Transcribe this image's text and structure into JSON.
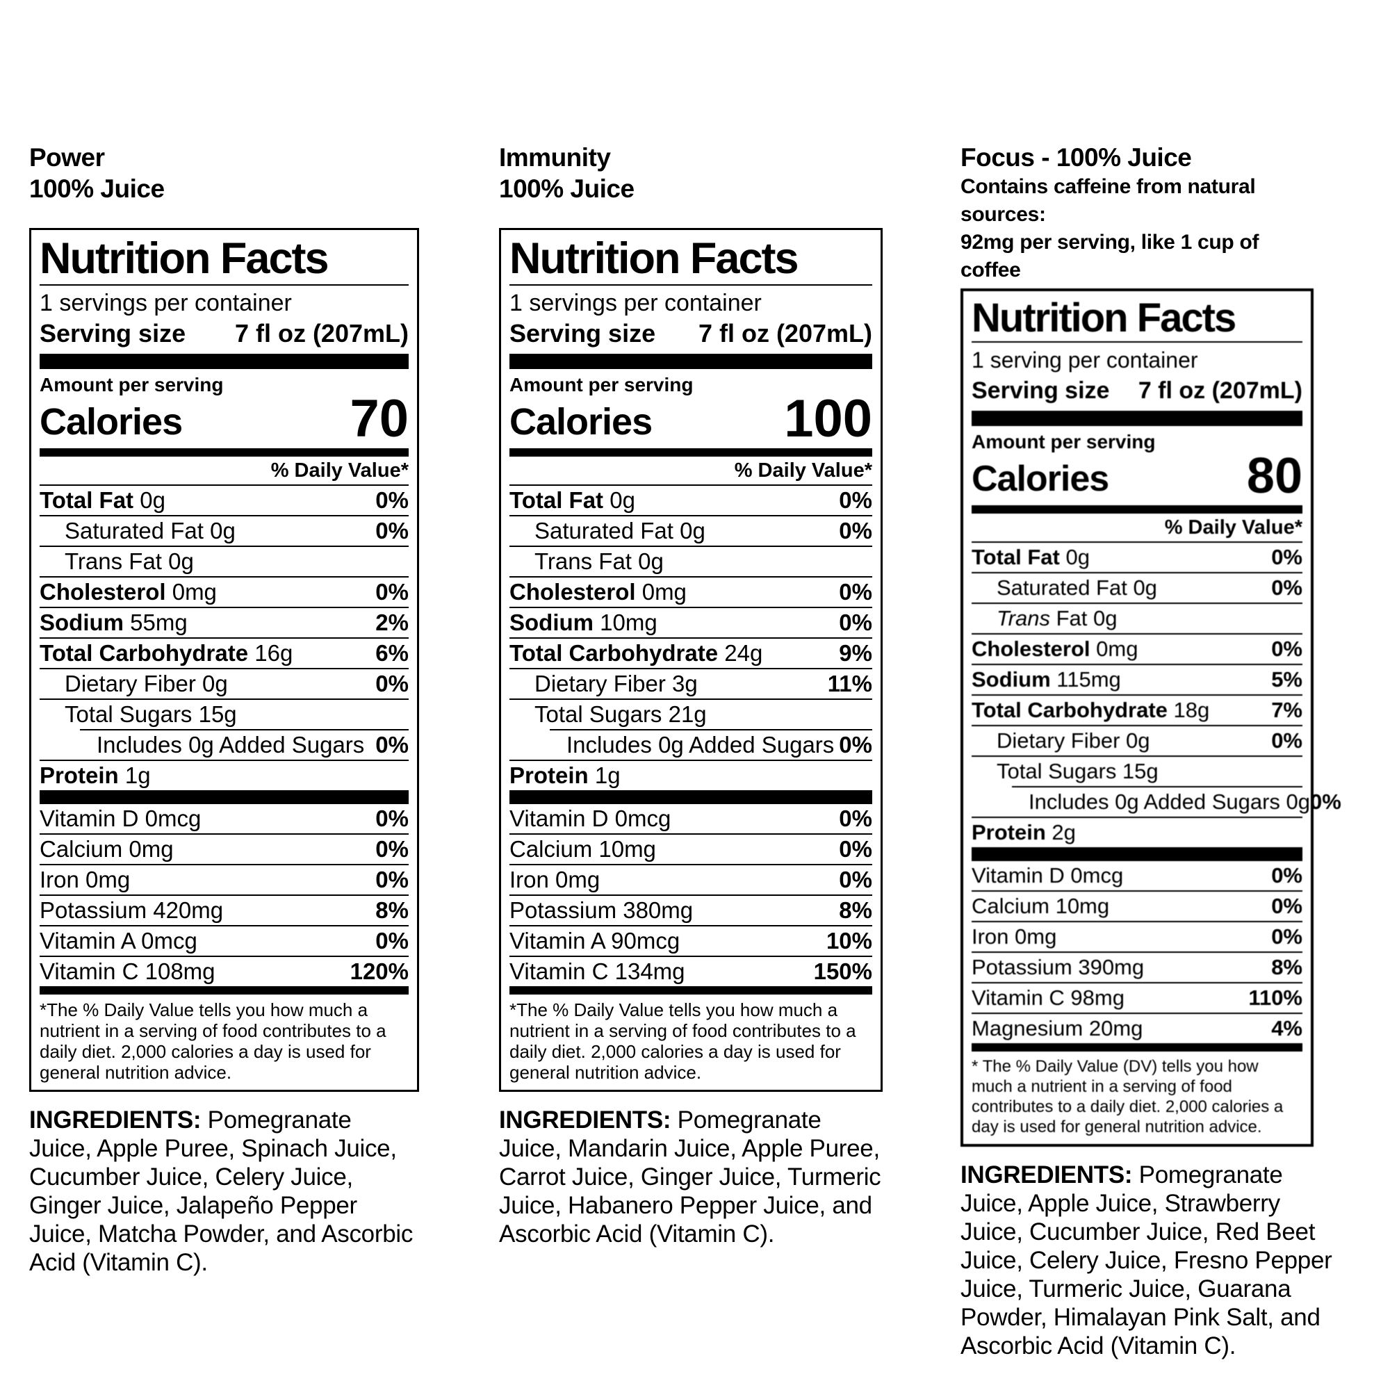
{
  "labels": [
    {
      "title_line1": "Power",
      "title_line2": "100% Juice",
      "header": "Nutrition Facts",
      "servings_per_container": "1 servings per container",
      "serving_size_label": "Serving size",
      "serving_size_value": "7 fl oz (207mL)",
      "amount_per_serving": "Amount per serving",
      "calories_label": "Calories",
      "calories_value": "70",
      "dv_header": "% Daily Value*",
      "rows": [
        {
          "b": "Total Fat",
          "r": " 0g",
          "pct": "0%",
          "ind": 0
        },
        {
          "r": "Saturated Fat 0g",
          "pct": "0%",
          "ind": 1
        },
        {
          "r": "Trans Fat 0g",
          "pct": "",
          "ind": 1
        },
        {
          "b": "Cholesterol",
          "r": " 0mg",
          "pct": "0%",
          "ind": 0
        },
        {
          "b": "Sodium",
          "r": " 55mg",
          "pct": "2%",
          "ind": 0
        },
        {
          "b": "Total Carbohydrate",
          "r": " 16g",
          "pct": "6%",
          "ind": 0
        },
        {
          "r": "Dietary Fiber 0g",
          "pct": "0%",
          "ind": 1
        },
        {
          "r": "Total Sugars 15g",
          "pct": "",
          "ind": 1
        },
        {
          "r": "Includes 0g Added Sugars",
          "pct": "0%",
          "ind": 2
        },
        {
          "b": "Protein",
          "r": " 1g",
          "pct": "",
          "ind": 0
        }
      ],
      "vitamins": [
        {
          "t": "Vitamin D 0mcg",
          "pct": "0%"
        },
        {
          "t": "Calcium 0mg",
          "pct": "0%"
        },
        {
          "t": "Iron 0mg",
          "pct": "0%"
        },
        {
          "t": "Potassium 420mg",
          "pct": "8%"
        },
        {
          "t": "Vitamin A 0mcg",
          "pct": "0%"
        },
        {
          "t": "Vitamin C 108mg",
          "pct": "120%"
        }
      ],
      "footnote": "*The % Daily Value tells you how much a nutrient in a serving of food contributes to a daily diet. 2,000 calories a day is used for general nutrition advice.",
      "ingredients_label": "INGREDIENTS:",
      "ingredients_text": " Pomegranate Juice, Apple Puree, Spinach Juice, Cucumber Juice, Celery Juice, Ginger Juice, Jalapeño Pepper Juice, Matcha Powder, and Ascorbic Acid (Vitamin C)."
    },
    {
      "title_line1": "Immunity",
      "title_line2": "100% Juice",
      "header": "Nutrition Facts",
      "servings_per_container": "1 servings per container",
      "serving_size_label": "Serving size",
      "serving_size_value": "7 fl oz (207mL)",
      "amount_per_serving": "Amount per serving",
      "calories_label": "Calories",
      "calories_value": "100",
      "dv_header": "% Daily Value*",
      "rows": [
        {
          "b": "Total Fat",
          "r": " 0g",
          "pct": "0%",
          "ind": 0
        },
        {
          "r": "Saturated Fat 0g",
          "pct": "0%",
          "ind": 1
        },
        {
          "r": "Trans Fat 0g",
          "pct": "",
          "ind": 1
        },
        {
          "b": "Cholesterol",
          "r": " 0mg",
          "pct": "0%",
          "ind": 0
        },
        {
          "b": "Sodium",
          "r": " 10mg",
          "pct": "0%",
          "ind": 0
        },
        {
          "b": "Total Carbohydrate",
          "r": " 24g",
          "pct": "9%",
          "ind": 0
        },
        {
          "r": "Dietary Fiber 3g",
          "pct": "11%",
          "ind": 1
        },
        {
          "r": "Total Sugars 21g",
          "pct": "",
          "ind": 1
        },
        {
          "r": "Includes 0g Added Sugars",
          "pct": "0%",
          "ind": 2
        },
        {
          "b": "Protein",
          "r": " 1g",
          "pct": "",
          "ind": 0
        }
      ],
      "vitamins": [
        {
          "t": "Vitamin D 0mcg",
          "pct": "0%"
        },
        {
          "t": "Calcium 10mg",
          "pct": "0%"
        },
        {
          "t": "Iron 0mg",
          "pct": "0%"
        },
        {
          "t": "Potassium 380mg",
          "pct": "8%"
        },
        {
          "t": "Vitamin A 90mcg",
          "pct": "10%"
        },
        {
          "t": "Vitamin C 134mg",
          "pct": "150%"
        }
      ],
      "footnote": "*The % Daily Value tells you how much a nutrient in a serving of food contributes to a daily diet. 2,000 calories a day is used for general nutrition advice.",
      "ingredients_label": "INGREDIENTS:",
      "ingredients_text": " Pomegranate Juice, Mandarin Juice, Apple Puree, Carrot Juice, Ginger Juice, Turmeric Juice, Habanero Pepper Juice, and Ascorbic Acid (Vitamin C)."
    },
    {
      "title_line1": "Focus - 100% Juice",
      "subtitle_line1": "Contains caffeine from natural sources:",
      "subtitle_line2": "92mg per serving, like 1 cup of coffee",
      "header": "Nutrition Facts",
      "servings_per_container": "1 serving per container",
      "serving_size_label": "Serving size",
      "serving_size_value": "7 fl oz (207mL)",
      "amount_per_serving": "Amount per serving",
      "calories_label": "Calories",
      "calories_value": "80",
      "dv_header": "% Daily Value*",
      "rows": [
        {
          "b": "Total Fat",
          "r": " 0g",
          "pct": "0%",
          "ind": 0
        },
        {
          "r": "Saturated Fat 0g",
          "pct": "0%",
          "ind": 1
        },
        {
          "it": "Trans",
          "r": " Fat 0g",
          "pct": "",
          "ind": 1
        },
        {
          "b": "Cholesterol",
          "r": " 0mg",
          "pct": "0%",
          "ind": 0
        },
        {
          "b": "Sodium",
          "r": " 115mg",
          "pct": "5%",
          "ind": 0
        },
        {
          "b": "Total Carbohydrate",
          "r": " 18g",
          "pct": "7%",
          "ind": 0
        },
        {
          "r": "Dietary Fiber 0g",
          "pct": "0%",
          "ind": 1
        },
        {
          "r": "Total Sugars 15g",
          "pct": "",
          "ind": 1
        },
        {
          "r": "Includes 0g Added Sugars 0g",
          "pct": "0%",
          "ind": 2
        },
        {
          "b": "Protein",
          "r": " 2g",
          "pct": "",
          "ind": 0
        }
      ],
      "vitamins": [
        {
          "t": "Vitamin D 0mcg",
          "pct": "0%"
        },
        {
          "t": "Calcium 10mg",
          "pct": "0%"
        },
        {
          "t": "Iron 0mg",
          "pct": "0%"
        },
        {
          "t": "Potassium 390mg",
          "pct": "8%"
        },
        {
          "t": "Vitamin C 98mg",
          "pct": "110%"
        },
        {
          "t": "Magnesium 20mg",
          "pct": "4%"
        }
      ],
      "footnote": "* The % Daily Value (DV) tells you how much a nutrient in a serving of food contributes to a daily diet. 2,000 calories a day is used for general nutrition advice.",
      "ingredients_label": "INGREDIENTS:",
      "ingredients_text": " Pomegranate Juice, Apple Juice, Strawberry Juice, Cucumber Juice, Red Beet Juice, Celery Juice, Fresno Pepper Juice, Turmeric Juice, Guarana Powder, Himalayan Pink Salt, and Ascorbic Acid (Vitamin C)."
    }
  ]
}
